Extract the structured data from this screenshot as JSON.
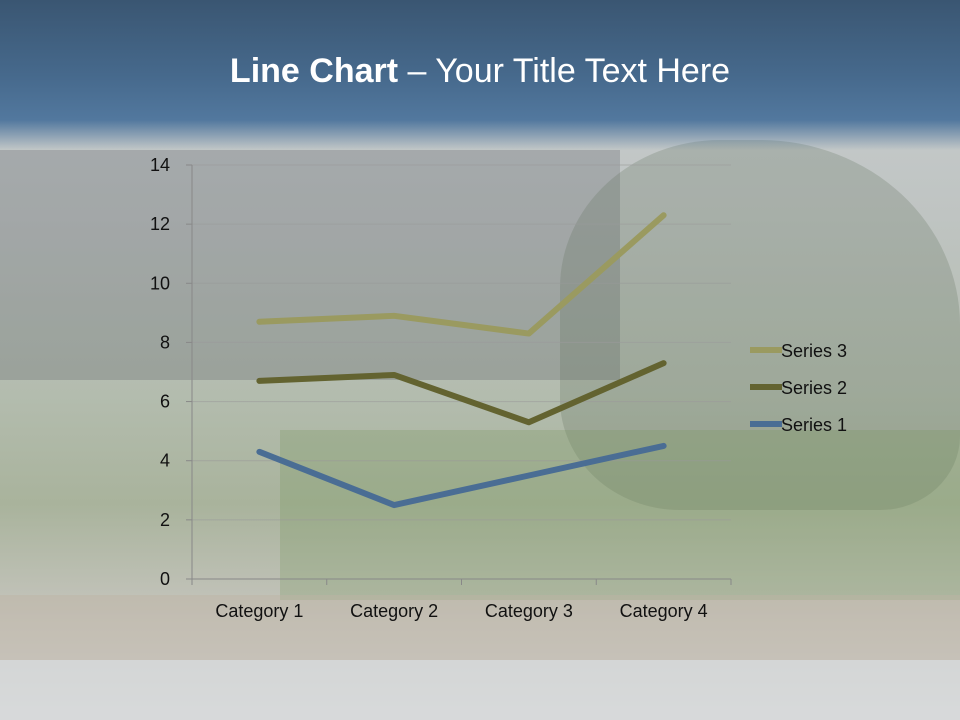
{
  "slide": {
    "title_bold": "Line Chart",
    "title_rest": " – Your Title Text Here"
  },
  "chart_data": {
    "type": "line",
    "stacked": true,
    "title": "",
    "xlabel": "",
    "ylabel": "",
    "categories": [
      "Category 1",
      "Category 2",
      "Category 3",
      "Category 4"
    ],
    "ylim": [
      0,
      14
    ],
    "yticks": [
      0,
      2,
      4,
      6,
      8,
      10,
      12,
      14
    ],
    "grid": true,
    "legend_position": "right",
    "series": [
      {
        "name": "Series 1",
        "values": [
          4.3,
          2.5,
          3.5,
          4.5
        ],
        "color": "#4a6d94"
      },
      {
        "name": "Series 2",
        "values": [
          2.4,
          4.4,
          1.8,
          2.8
        ],
        "color": "#636330"
      },
      {
        "name": "Series 3",
        "values": [
          2,
          2,
          3,
          5
        ],
        "color": "#9a9a60"
      }
    ]
  }
}
